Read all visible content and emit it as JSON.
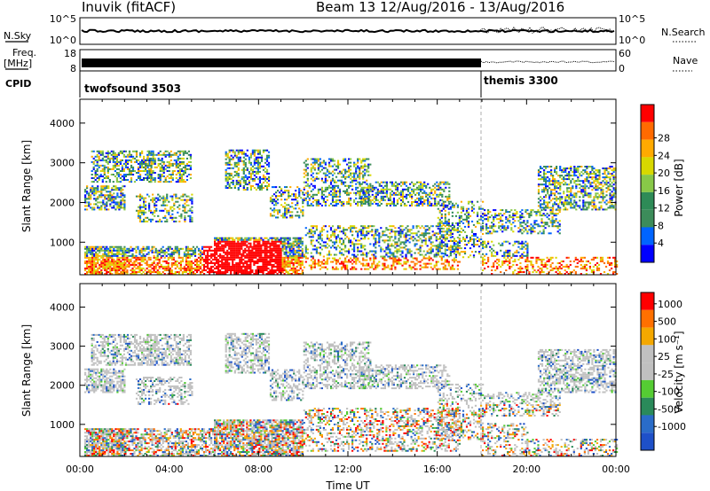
{
  "header": {
    "station": "Inuvik (fitACF)",
    "beam_dates": "Beam 13 12/Aug/2016 - 13/Aug/2016"
  },
  "panels": {
    "nsky": {
      "left_label": "N.Sky",
      "left_ticks": [
        "10^5",
        "10^0"
      ],
      "right_ticks": [
        "10^5",
        "10^0"
      ],
      "right_label": "N.Search"
    },
    "freq": {
      "left_label_1": "Freq.",
      "left_label_2": "[MHz]",
      "left_ticks": [
        "18",
        "8"
      ],
      "right_ticks": [
        "60",
        "0"
      ],
      "right_label": "Nave"
    },
    "cpid": {
      "label": "CPID",
      "modes": [
        "twofsound 3503",
        "themis 3300"
      ]
    }
  },
  "colors": {
    "power": [
      "#0000ff",
      "#0064ff",
      "#3c8c5a",
      "#2e8b57",
      "#88c848",
      "#d8d800",
      "#ffaa00",
      "#ff6a00",
      "#ff0000"
    ],
    "velocity": [
      "#1e50c8",
      "#2a6cc8",
      "#2a8a5a",
      "#55cc33",
      "#c0c0c0",
      "#c0c0c0",
      "#f4a800",
      "#ff7000",
      "#ff0000"
    ]
  },
  "chart_data": [
    {
      "type": "heatmap",
      "name": "Power",
      "title": "",
      "ylabel": "Slant Range [km]",
      "xlabel": "",
      "ylim": [
        180,
        4600
      ],
      "yticks": [
        "1000",
        "2000",
        "3000",
        "4000"
      ],
      "xticks": [
        "00:00",
        "04:00",
        "08:00",
        "12:00",
        "16:00",
        "20:00",
        "00:00"
      ],
      "colorbar": {
        "label": "Power [dB]",
        "ticks": [
          "4",
          "8",
          "12",
          "16",
          "20",
          "24",
          "28"
        ]
      }
    },
    {
      "type": "heatmap",
      "name": "Velocity",
      "title": "",
      "ylabel": "Slant Range [km]",
      "xlabel": "Time UT",
      "ylim": [
        180,
        4600
      ],
      "yticks": [
        "1000",
        "2000",
        "3000",
        "4000"
      ],
      "xticks": [
        "00:00",
        "04:00",
        "08:00",
        "12:00",
        "16:00",
        "20:00",
        "00:00"
      ],
      "colorbar": {
        "label": "Velocity [m s⁻¹]",
        "ticks": [
          "1000",
          "500",
          "100",
          "25",
          "-25",
          "-100",
          "-500",
          "-1000"
        ]
      }
    }
  ]
}
